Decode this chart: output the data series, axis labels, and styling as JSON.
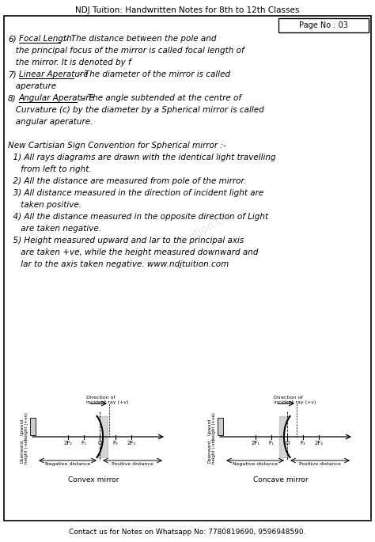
{
  "title": "NDJ Tuition: Handwritten Notes for 8th to 12th Classes",
  "page_no": "Page No : 03",
  "contact": "Contact us for Notes on Whatsapp No: 7780819690, 9596948590.",
  "background_color": "#ffffff",
  "border_color": "#000000",
  "text_color": "#000000",
  "lines": [
    {
      "prefix": "6)",
      "underline": "Focal Length",
      "rest": " :- The distance between the pole and"
    },
    {
      "prefix": "",
      "underline": "",
      "rest": "   the principal focus of the mirror is called focal length of"
    },
    {
      "prefix": "",
      "underline": "",
      "rest": "   the mirror. It is denoted by f"
    },
    {
      "prefix": "7)",
      "underline": "Linear Aperature",
      "rest": " :- The diameter of the mirror is called"
    },
    {
      "prefix": "",
      "underline": "",
      "rest": "   aperature"
    },
    {
      "prefix": "8)",
      "underline": "Angular Aperature",
      "rest": " :- The angle subtended at the centre of"
    },
    {
      "prefix": "",
      "underline": "",
      "rest": "   Curvature (c) by the diameter by a Spherical mirror is called"
    },
    {
      "prefix": "",
      "underline": "",
      "rest": "   angular aperature."
    },
    {
      "prefix": "",
      "underline": "",
      "rest": ""
    },
    {
      "prefix": "",
      "underline": "",
      "rest": "New Cartisian Sign Convention for Spherical mirror :-"
    },
    {
      "prefix": "",
      "underline": "",
      "rest": "  1) All rays diagrams are drawn with the identical light travelling"
    },
    {
      "prefix": "",
      "underline": "",
      "rest": "     from left to right."
    },
    {
      "prefix": "",
      "underline": "",
      "rest": "  2) All the distance are measured from pole of the mirror."
    },
    {
      "prefix": "",
      "underline": "",
      "rest": "  3) All distance measured in the direction of incident light are"
    },
    {
      "prefix": "",
      "underline": "",
      "rest": "     taken positive."
    },
    {
      "prefix": "",
      "underline": "",
      "rest": "  4) All the distance measured in the opposite direction of Light"
    },
    {
      "prefix": "",
      "underline": "",
      "rest": "     are taken negative."
    },
    {
      "prefix": "",
      "underline": "",
      "rest": "  5) Height measured upward and lar to the principal axis"
    },
    {
      "prefix": "",
      "underline": "",
      "rest": "     are taken +ve, while the height measured downward and"
    },
    {
      "prefix": "",
      "underline": "",
      "rest": "     lar to the axis taken negative. www.ndjtuition.com"
    }
  ],
  "convex_label": "Convex mirror",
  "concave_label": "Concave mirror",
  "axis_labels": [
    "2F₁",
    "F₁",
    "O",
    "F₂",
    "2F₂"
  ],
  "dir_label": "Direction of\nincident ray (+v)",
  "upward_label": "Upward\nheight (+ve)",
  "downward_label": "Downward\nheight (-ve)",
  "watermark": "www.ndjtuition.com"
}
